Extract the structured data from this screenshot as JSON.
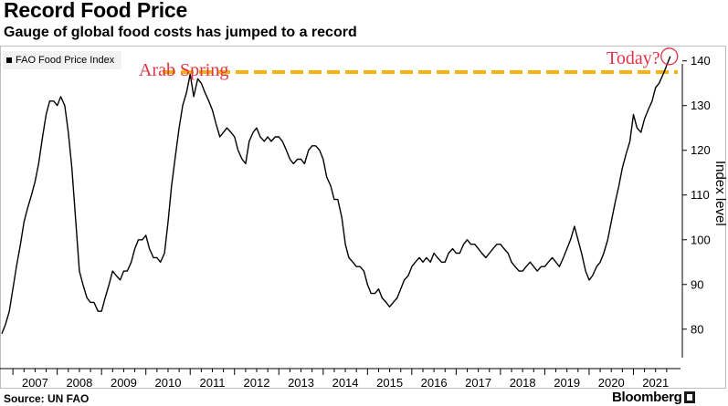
{
  "header": {
    "title": "Record Food Price",
    "subtitle": "Gauge of global food costs has jumped to a record"
  },
  "footer": {
    "source": "Source: UN FAO",
    "brand": "Bloomberg"
  },
  "colors": {
    "line": "#000000",
    "reference": "#f5b312",
    "annotation": "#e0334a"
  },
  "chart_data": {
    "type": "line",
    "title": "Record Food Price",
    "subtitle": "Gauge of global food costs has jumped to a record",
    "xlabel": "",
    "ylabel": "Index level",
    "xlim": [
      2006.75,
      2022.0
    ],
    "ylim": [
      72,
      143
    ],
    "x_ticks": [
      2007,
      2008,
      2009,
      2010,
      2011,
      2012,
      2013,
      2014,
      2015,
      2016,
      2017,
      2018,
      2019,
      2020,
      2021
    ],
    "y_ticks": [
      80,
      90,
      100,
      110,
      120,
      130,
      140
    ],
    "y_axis_side": "right",
    "grid": false,
    "legend": {
      "position": "top-left",
      "entries": [
        "FAO Food Price Index"
      ]
    },
    "series": [
      {
        "name": "FAO Food Price Index",
        "x": [
          2006.75,
          2006.83,
          2006.92,
          2007.0,
          2007.08,
          2007.17,
          2007.25,
          2007.33,
          2007.42,
          2007.5,
          2007.58,
          2007.67,
          2007.75,
          2007.83,
          2007.92,
          2008.0,
          2008.08,
          2008.17,
          2008.25,
          2008.33,
          2008.42,
          2008.5,
          2008.58,
          2008.67,
          2008.75,
          2008.83,
          2008.92,
          2009.0,
          2009.08,
          2009.17,
          2009.25,
          2009.33,
          2009.42,
          2009.5,
          2009.58,
          2009.67,
          2009.75,
          2009.83,
          2009.92,
          2010.0,
          2010.08,
          2010.17,
          2010.25,
          2010.33,
          2010.42,
          2010.5,
          2010.58,
          2010.67,
          2010.75,
          2010.83,
          2010.92,
          2011.0,
          2011.08,
          2011.17,
          2011.25,
          2011.33,
          2011.42,
          2011.5,
          2011.58,
          2011.67,
          2011.75,
          2011.83,
          2011.92,
          2012.0,
          2012.08,
          2012.17,
          2012.25,
          2012.33,
          2012.42,
          2012.5,
          2012.58,
          2012.67,
          2012.75,
          2012.83,
          2012.92,
          2013.0,
          2013.08,
          2013.17,
          2013.25,
          2013.33,
          2013.42,
          2013.5,
          2013.58,
          2013.67,
          2013.75,
          2013.83,
          2013.92,
          2014.0,
          2014.08,
          2014.17,
          2014.25,
          2014.33,
          2014.42,
          2014.5,
          2014.58,
          2014.67,
          2014.75,
          2014.83,
          2014.92,
          2015.0,
          2015.08,
          2015.17,
          2015.25,
          2015.33,
          2015.42,
          2015.5,
          2015.58,
          2015.67,
          2015.75,
          2015.83,
          2015.92,
          2016.0,
          2016.08,
          2016.17,
          2016.25,
          2016.33,
          2016.42,
          2016.5,
          2016.58,
          2016.67,
          2016.75,
          2016.83,
          2016.92,
          2017.0,
          2017.08,
          2017.17,
          2017.25,
          2017.33,
          2017.42,
          2017.5,
          2017.58,
          2017.67,
          2017.75,
          2017.83,
          2017.92,
          2018.0,
          2018.08,
          2018.17,
          2018.25,
          2018.33,
          2018.42,
          2018.5,
          2018.58,
          2018.67,
          2018.75,
          2018.83,
          2018.92,
          2019.0,
          2019.08,
          2019.17,
          2019.25,
          2019.33,
          2019.42,
          2019.5,
          2019.58,
          2019.67,
          2019.75,
          2019.83,
          2019.92,
          2020.0,
          2020.08,
          2020.17,
          2020.25,
          2020.33,
          2020.42,
          2020.5,
          2020.58,
          2020.67,
          2020.75,
          2020.83,
          2020.92,
          2021.0,
          2021.08,
          2021.17,
          2021.25,
          2021.33,
          2021.42,
          2021.5,
          2021.58,
          2021.67,
          2021.75,
          2021.83
        ],
        "values": [
          79,
          81,
          84,
          89,
          94,
          99,
          104,
          107,
          110,
          113,
          117,
          123,
          128,
          131,
          131,
          130,
          132,
          130,
          124,
          116,
          104,
          93,
          90,
          87,
          86,
          86,
          84,
          84,
          87,
          90,
          93,
          92,
          91,
          93,
          93,
          95,
          98,
          100,
          100,
          101,
          98,
          96,
          96,
          95,
          97,
          104,
          112,
          119,
          125,
          130,
          133,
          137,
          132,
          136,
          135,
          133,
          131,
          129,
          126,
          123,
          124,
          125,
          124,
          123,
          120,
          118,
          117,
          122,
          124,
          125,
          123,
          122,
          123,
          122,
          123,
          123,
          122,
          120,
          118,
          117,
          118,
          118,
          117,
          120,
          121,
          121,
          120,
          118,
          114,
          112,
          109,
          109,
          105,
          99,
          96,
          95,
          94,
          94,
          93,
          90,
          88,
          88,
          89,
          87,
          86,
          85,
          86,
          87,
          89,
          91,
          92,
          94,
          95,
          96,
          95,
          96,
          95,
          97,
          96,
          95,
          95,
          97,
          98,
          97,
          97,
          99,
          100,
          99,
          99,
          98,
          97,
          96,
          97,
          98,
          99,
          99,
          98,
          97,
          95,
          94,
          93,
          93,
          94,
          95,
          94,
          93,
          94,
          94,
          95,
          96,
          95,
          94,
          96,
          98,
          100,
          103,
          100,
          97,
          93,
          91,
          92,
          94,
          95,
          97,
          100,
          104,
          108,
          112,
          116,
          119,
          122,
          128,
          125,
          124,
          127,
          129,
          131,
          134,
          135,
          137,
          139,
          141
        ]
      }
    ],
    "reference_line": {
      "value": 137.5,
      "style": "dashed"
    },
    "annotations": [
      {
        "text": "Arab Spring",
        "x": 2010.0,
        "y": 137.5
      },
      {
        "text": "Today?",
        "x": 2021.83,
        "y": 141
      }
    ]
  }
}
